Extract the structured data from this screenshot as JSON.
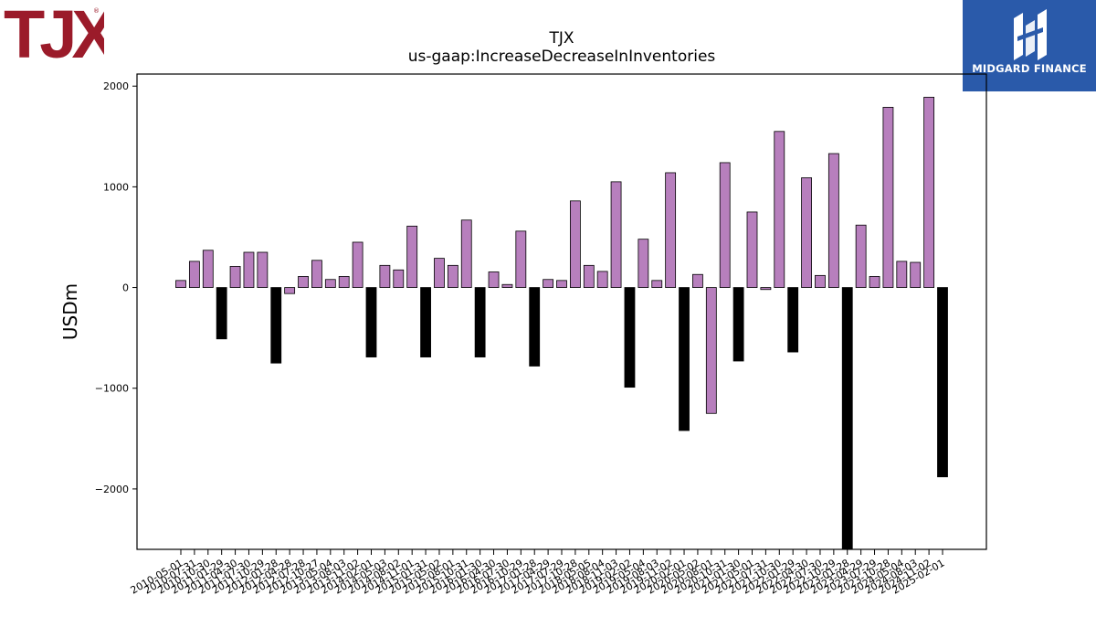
{
  "brand": {
    "logo_text": "TJX"
  },
  "partner": {
    "name": "MIDGARD FINANCE"
  },
  "colors": {
    "positive": "#b77fbd",
    "negative": "#000000",
    "partner_bg": "#2a5aaa",
    "brand_red": "#9b1b2a"
  },
  "chart_data": {
    "type": "bar",
    "title": "TJX",
    "subtitle": "us-gaap:IncreaseDecreaseInInventories",
    "xlabel": "",
    "ylabel": "USDm",
    "ylim": [
      -2600,
      2120
    ],
    "yticks": [
      2000,
      1000,
      0,
      -1000,
      -2000
    ],
    "ytick_labels": [
      "2000",
      "1000",
      "0",
      "−1000",
      "−2000"
    ],
    "grid": false,
    "legend": "none",
    "categories": [
      "2010-05-01",
      "2010-07-31",
      "2010-10-30",
      "2011-01-29",
      "2011-04-30",
      "2011-07-30",
      "2011-10-29",
      "2012-01-28",
      "2012-04-28",
      "2012-07-28",
      "2012-10-27",
      "2013-05-04",
      "2013-08-03",
      "2013-11-02",
      "2014-02-01",
      "2014-05-03",
      "2014-08-02",
      "2014-11-01",
      "2015-01-31",
      "2015-05-02",
      "2015-08-01",
      "2015-10-31",
      "2016-01-30",
      "2016-04-30",
      "2016-07-30",
      "2016-10-29",
      "2017-01-28",
      "2017-04-29",
      "2017-07-29",
      "2017-10-28",
      "2018-05-05",
      "2018-08-04",
      "2018-11-03",
      "2019-02-02",
      "2019-05-04",
      "2019-08-03",
      "2019-11-02",
      "2020-02-01",
      "2020-05-02",
      "2020-08-01",
      "2020-10-31",
      "2021-01-30",
      "2021-05-01",
      "2021-07-31",
      "2021-10-30",
      "2022-01-29",
      "2022-04-30",
      "2022-07-30",
      "2022-10-29",
      "2023-01-28",
      "2023-04-29",
      "2023-07-29",
      "2023-10-28",
      "2024-05-04",
      "2024-08-03",
      "2024-11-02",
      "2025-02-01"
    ],
    "values": [
      70,
      260,
      370,
      -510,
      210,
      350,
      350,
      -750,
      -60,
      110,
      270,
      80,
      110,
      450,
      -690,
      220,
      175,
      610,
      -690,
      290,
      220,
      670,
      -690,
      155,
      30,
      560,
      -780,
      80,
      70,
      860,
      220,
      160,
      1050,
      -990,
      480,
      70,
      1140,
      -1420,
      130,
      -1250,
      1240,
      -730,
      750,
      -20,
      1550,
      -640,
      1090,
      120,
      1330,
      -2600,
      620,
      110,
      1790,
      260,
      250,
      1890,
      -1880
    ],
    "negative_emphasis_indices": [
      3,
      7,
      14,
      18,
      22,
      26,
      33,
      37,
      41,
      45,
      49,
      56
    ]
  }
}
